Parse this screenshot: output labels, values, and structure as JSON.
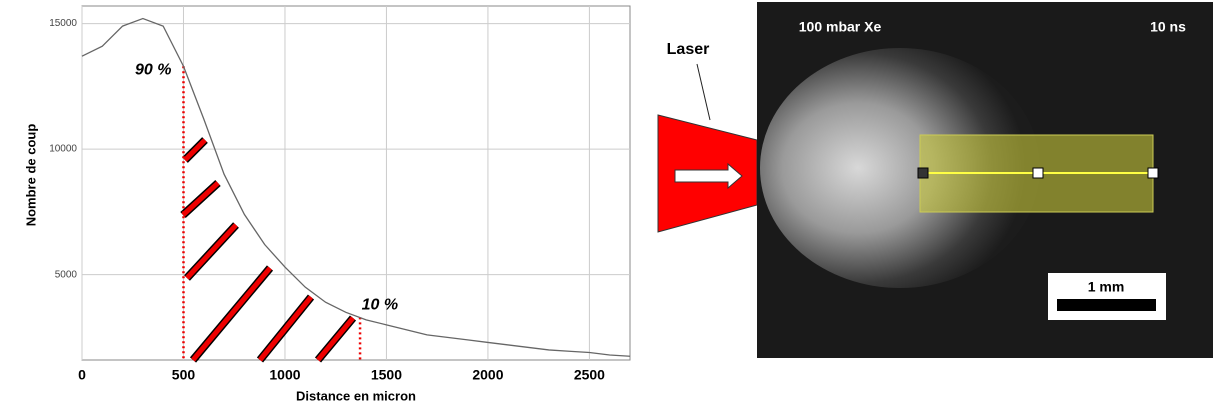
{
  "chart_data": {
    "type": "line",
    "x_label": "Distance en micron",
    "y_label": "Nombre de coup",
    "x": [
      0,
      100,
      200,
      300,
      400,
      500,
      600,
      700,
      800,
      900,
      1000,
      1100,
      1200,
      1300,
      1400,
      1500,
      1600,
      1700,
      1800,
      1900,
      2000,
      2100,
      2200,
      2300,
      2400,
      2500,
      2600,
      2700
    ],
    "values": [
      13700,
      14100,
      14900,
      15200,
      14900,
      13300,
      11200,
      9000,
      7400,
      6200,
      5300,
      4500,
      3900,
      3500,
      3200,
      3000,
      2800,
      2600,
      2500,
      2400,
      2300,
      2200,
      2100,
      2000,
      1950,
      1900,
      1800,
      1750
    ],
    "color": "#666666",
    "xlim": [
      0,
      2700
    ],
    "ylim": [
      1600,
      15700
    ],
    "xticks": [
      0,
      500,
      1000,
      1500,
      2000,
      2500
    ],
    "yticks": [
      5000,
      10000,
      15000
    ],
    "grid": true,
    "annotations": [
      {
        "x": 500,
        "y": 13300,
        "text": "90 %"
      },
      {
        "x": 1370,
        "y": 3300,
        "text": "10 %"
      }
    ]
  },
  "laser_label": "Laser",
  "image": {
    "gas": "100 mbar Xe",
    "time": "10 ns",
    "scale_bar": "1 mm"
  }
}
